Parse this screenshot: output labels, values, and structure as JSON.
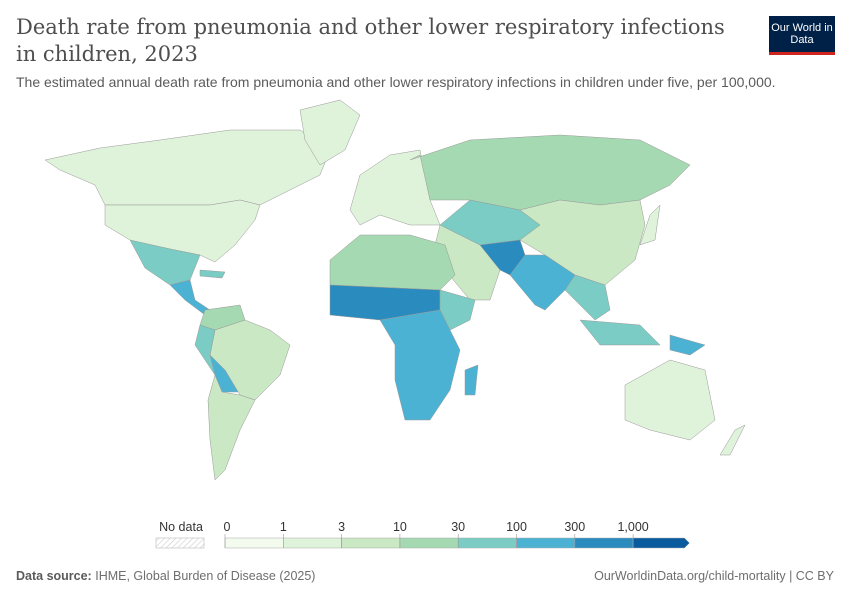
{
  "header": {
    "title": "Death rate from pneumonia and other lower respiratory infections in children, 2023",
    "subtitle": "The estimated annual death rate from pneumonia and other lower respiratory infections in children under five, per 100,000.",
    "logo_text": "Our World in Data"
  },
  "legend": {
    "no_data_label": "No data",
    "ticks": [
      "0",
      "1",
      "3",
      "10",
      "30",
      "100",
      "300",
      "1,000"
    ],
    "bin_colors": [
      "#f3faee",
      "#dff2da",
      "#c9e8c3",
      "#a5d9b1",
      "#7accc4",
      "#4cb2d3",
      "#2a8bbe",
      "#0a5b9e"
    ],
    "no_data_color": "#e8e8e8"
  },
  "footer": {
    "source_label": "Data source:",
    "source": "IHME, Global Burden of Disease (2025)",
    "link": "OurWorldinData.org/child-mortality | CC BY"
  }
}
